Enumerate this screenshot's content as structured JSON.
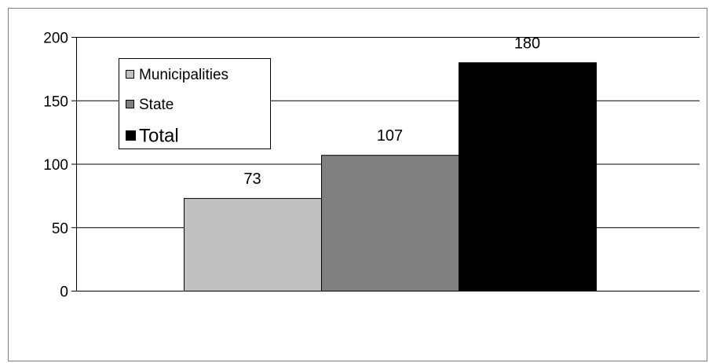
{
  "chart_data": {
    "type": "bar",
    "categories": [
      "Municipalities",
      "State",
      "Total"
    ],
    "values": [
      73,
      107,
      180
    ],
    "data_labels": [
      "73",
      "107",
      "180"
    ],
    "colors": [
      "#c0c0c0",
      "#808080",
      "#000000"
    ],
    "ylim": [
      0,
      200
    ],
    "yticks": [
      0,
      50,
      100,
      150,
      200
    ],
    "ytick_labels": [
      "0",
      "50",
      "100",
      "150",
      "200"
    ],
    "grid": true,
    "legend": {
      "placement": "top-left",
      "entries": [
        "Municipalities",
        "State",
        "Total"
      ]
    }
  }
}
